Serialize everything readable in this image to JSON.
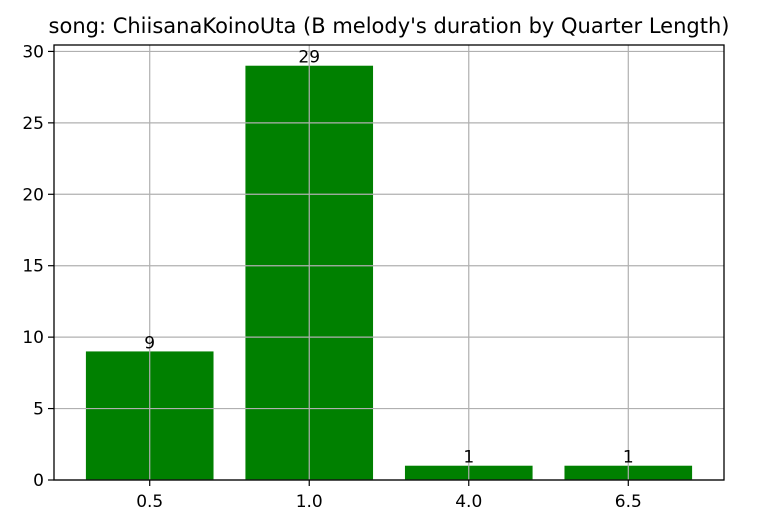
{
  "chart_data": {
    "type": "bar",
    "title": "song: ChiisanaKoinoUta (B melody's duration by Quarter Length)",
    "xlabel": "",
    "ylabel": "",
    "categories": [
      "0.5",
      "1.0",
      "4.0",
      "6.5"
    ],
    "values": [
      9,
      29,
      1,
      1
    ],
    "data_labels": [
      "9",
      "29",
      "1",
      "1"
    ],
    "ylim": [
      0,
      30.45
    ],
    "yticks": [
      0,
      5,
      10,
      15,
      20,
      25,
      30
    ],
    "grid": true,
    "legend": "none",
    "bar_color": "#008000",
    "grid_color": "#b0b0b0"
  }
}
